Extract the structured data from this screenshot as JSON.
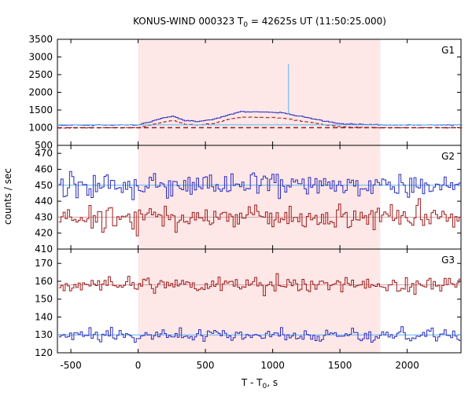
{
  "chart_data": {
    "type": "line",
    "title": {
      "prefix": "KONUS-WIND 000323 T",
      "sub": "0",
      "suffix": " = 42625s UT (11:50:25.000)"
    },
    "xlabel": {
      "prefix": "T - T",
      "sub": "0",
      "suffix": ", s"
    },
    "ylabel": "counts / sec",
    "xlim": [
      -600,
      2400
    ],
    "xticks": [
      -500,
      0,
      500,
      1000,
      1500,
      2000
    ],
    "shaded_interval": [
      0,
      1800
    ],
    "colors": {
      "red_series": "#9b1b1b",
      "blue_series": "#2b2bbb",
      "light_blue_series": "#5ab4f0",
      "shade": "#fde7e7",
      "background_fit": "#3344cc"
    },
    "panels": [
      {
        "name": "G1",
        "ylim": [
          500,
          3500
        ],
        "yticks": [
          500,
          1000,
          1500,
          2000,
          2500,
          3000,
          3500
        ],
        "background_levels": {
          "blue": 1080,
          "red": 1000
        },
        "spike": {
          "x": 1118,
          "y": 2800
        },
        "profile": [
          [
            -600,
            1070
          ],
          [
            0,
            1080
          ],
          [
            60,
            1150
          ],
          [
            150,
            1250
          ],
          [
            250,
            1330
          ],
          [
            340,
            1200
          ],
          [
            450,
            1180
          ],
          [
            550,
            1230
          ],
          [
            650,
            1350
          ],
          [
            750,
            1450
          ],
          [
            900,
            1450
          ],
          [
            1050,
            1420
          ],
          [
            1120,
            1380
          ],
          [
            1200,
            1320
          ],
          [
            1300,
            1250
          ],
          [
            1400,
            1170
          ],
          [
            1500,
            1110
          ],
          [
            1800,
            1080
          ],
          [
            2400,
            1075
          ]
        ]
      },
      {
        "name": "G2",
        "ylim": [
          410,
          475
        ],
        "yticks": [
          410,
          420,
          430,
          440,
          450,
          460,
          470
        ],
        "series": [
          {
            "name": "blue",
            "mean": 450,
            "spread": 7
          },
          {
            "name": "red",
            "mean": 430,
            "spread": 7
          }
        ]
      },
      {
        "name": "G3",
        "ylim": [
          120,
          178
        ],
        "yticks": [
          120,
          130,
          140,
          150,
          160,
          170
        ],
        "series": [
          {
            "name": "red",
            "mean": 158,
            "spread": 4
          },
          {
            "name": "blue",
            "mean": 130,
            "spread": 3.5
          }
        ]
      }
    ]
  }
}
